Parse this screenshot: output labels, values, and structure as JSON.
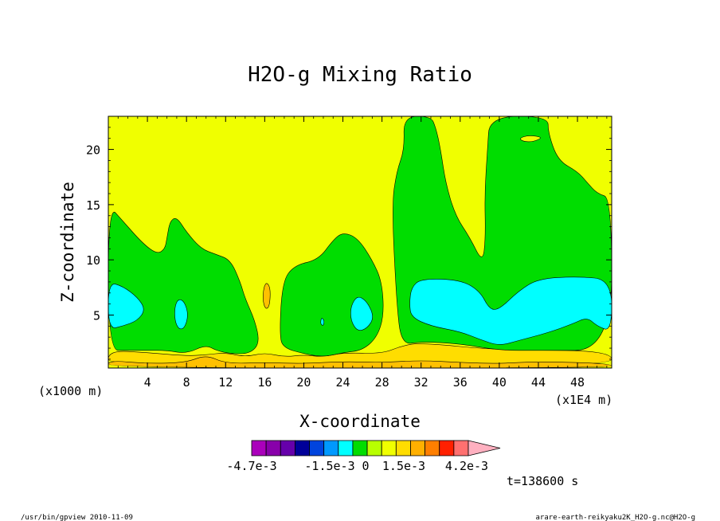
{
  "chart_data": {
    "type": "heatmap",
    "subtype": "filled-contour",
    "title": "H2O-g Mixing Ratio",
    "xlabel": "X-coordinate",
    "ylabel": "Z-coordinate",
    "x_unit_label": "(x1E4 m)",
    "y_unit_label": "(x1000 m)",
    "xlim": [
      0,
      51.5
    ],
    "ylim": [
      0.2,
      23
    ],
    "x_ticks": [
      "4",
      "8",
      "12",
      "16",
      "20",
      "24",
      "28",
      "32",
      "36",
      "40",
      "44",
      "48"
    ],
    "y_ticks": [
      "5",
      "10",
      "15",
      "20"
    ],
    "x_tick_values": [
      4,
      8,
      12,
      16,
      20,
      24,
      28,
      32,
      36,
      40,
      44,
      48
    ],
    "y_tick_values": [
      5,
      10,
      15,
      20
    ],
    "background_level_color": "#f0ff00",
    "regions": [
      {
        "name": "bottom-yellow-band",
        "color": "#ffdd00",
        "points": [
          [
            0,
            0.2
          ],
          [
            51.5,
            0.2
          ],
          [
            51.5,
            1.8
          ],
          [
            40,
            1.8
          ],
          [
            32,
            2.5
          ],
          [
            30,
            2.2
          ],
          [
            28,
            1.5
          ],
          [
            24,
            1.6
          ],
          [
            22,
            1.2
          ],
          [
            20,
            1.4
          ],
          [
            18,
            1.2
          ],
          [
            16,
            1.6
          ],
          [
            14,
            1.2
          ],
          [
            12,
            1.6
          ],
          [
            10,
            1.4
          ],
          [
            8,
            1.3
          ],
          [
            4,
            1.6
          ],
          [
            0,
            1.8
          ]
        ]
      },
      {
        "name": "bottom-orange-band",
        "color": "#ffc000",
        "points": [
          [
            0,
            0.2
          ],
          [
            51.5,
            0.2
          ],
          [
            51.5,
            0.6
          ],
          [
            44,
            0.8
          ],
          [
            40,
            0.6
          ],
          [
            36,
            0.7
          ],
          [
            32,
            0.9
          ],
          [
            28,
            0.7
          ],
          [
            24,
            0.8
          ],
          [
            20,
            0.6
          ],
          [
            16,
            0.7
          ],
          [
            12,
            0.6
          ],
          [
            10,
            1.4
          ],
          [
            8,
            0.7
          ],
          [
            4,
            0.6
          ],
          [
            0,
            0.9
          ]
        ]
      },
      {
        "name": "green-left",
        "color": "#00dd00",
        "points": [
          [
            0,
            15
          ],
          [
            1.5,
            13.5
          ],
          [
            3.5,
            11.5
          ],
          [
            5,
            10.5
          ],
          [
            5.8,
            11
          ],
          [
            6,
            12
          ],
          [
            6.3,
            13.5
          ],
          [
            7,
            13.9
          ],
          [
            8,
            12.5
          ],
          [
            9.5,
            11
          ],
          [
            11,
            10.5
          ],
          [
            12.5,
            10
          ],
          [
            13.5,
            8
          ],
          [
            14,
            6.5
          ],
          [
            15,
            4.5
          ],
          [
            15.5,
            2.5
          ],
          [
            14.5,
            1.5
          ],
          [
            12.5,
            1.5
          ],
          [
            11,
            1.8
          ],
          [
            10,
            2.3
          ],
          [
            8,
            1.5
          ],
          [
            6,
            1.8
          ],
          [
            4,
            1.8
          ],
          [
            2,
            1.8
          ],
          [
            0,
            1.8
          ]
        ]
      },
      {
        "name": "green-middle",
        "color": "#00dd00",
        "points": [
          [
            17.5,
            3
          ],
          [
            17.8,
            8
          ],
          [
            19,
            9.5
          ],
          [
            21.5,
            10
          ],
          [
            23,
            11.8
          ],
          [
            24,
            12.5
          ],
          [
            25.5,
            12
          ],
          [
            27,
            10
          ],
          [
            28,
            8
          ],
          [
            28.2,
            5
          ],
          [
            27.5,
            3
          ],
          [
            26,
            1.8
          ],
          [
            24,
            1.6
          ],
          [
            22,
            1.2
          ],
          [
            20,
            1.5
          ],
          [
            18,
            2
          ]
        ]
      },
      {
        "name": "green-right",
        "color": "#00dd00",
        "points": [
          [
            30,
            2.3
          ],
          [
            29.5,
            6
          ],
          [
            29,
            15
          ],
          [
            29.5,
            18
          ],
          [
            30.3,
            20
          ],
          [
            30.2,
            23
          ],
          [
            33,
            23
          ],
          [
            33.5,
            22
          ],
          [
            34,
            20
          ],
          [
            34.5,
            17
          ],
          [
            35.5,
            14
          ],
          [
            37,
            12
          ],
          [
            38.3,
            9.7
          ],
          [
            38.6,
            12
          ],
          [
            38.5,
            16
          ],
          [
            38.8,
            20
          ],
          [
            39,
            23
          ],
          [
            45,
            23
          ],
          [
            45,
            21.5
          ],
          [
            46,
            19
          ],
          [
            48,
            18
          ],
          [
            49,
            17
          ],
          [
            50,
            16
          ],
          [
            51.5,
            15.6
          ],
          [
            51.5,
            1.8
          ],
          [
            44,
            1.8
          ],
          [
            40,
            1.8
          ],
          [
            36,
            2.4
          ],
          [
            32,
            2.6
          ]
        ]
      },
      {
        "name": "cyan-left",
        "color": "#00ffff",
        "points": [
          [
            0,
            8
          ],
          [
            1.5,
            7.6
          ],
          [
            3,
            6.6
          ],
          [
            3.8,
            5.5
          ],
          [
            3,
            4.5
          ],
          [
            1.5,
            4
          ],
          [
            0,
            3.7
          ]
        ]
      },
      {
        "name": "cyan-blob-x7",
        "color": "#00ffff",
        "points": [
          [
            7.2,
            6.5
          ],
          [
            7.8,
            6.2
          ],
          [
            8.2,
            5
          ],
          [
            7.8,
            3.8
          ],
          [
            7.2,
            3.7
          ],
          [
            6.8,
            4.5
          ],
          [
            6.8,
            5.8
          ]
        ]
      },
      {
        "name": "cyan-blob-x26",
        "color": "#00ffff",
        "points": [
          [
            25.5,
            6.8
          ],
          [
            26.5,
            6.2
          ],
          [
            27.2,
            4.8
          ],
          [
            26.5,
            3.8
          ],
          [
            25.5,
            3.5
          ],
          [
            24.8,
            4.5
          ],
          [
            24.8,
            5.8
          ]
        ]
      },
      {
        "name": "cyan-speck-x22",
        "color": "#00ffff",
        "points": [
          [
            21.8,
            4.8
          ],
          [
            22.1,
            4.5
          ],
          [
            22,
            4
          ],
          [
            21.7,
            4.2
          ]
        ]
      },
      {
        "name": "cyan-right",
        "color": "#00ffff",
        "points": [
          [
            31,
            7.5
          ],
          [
            32,
            8.3
          ],
          [
            36,
            8.2
          ],
          [
            38,
            7.2
          ],
          [
            39,
            5.5
          ],
          [
            40,
            5.5
          ],
          [
            42,
            7.2
          ],
          [
            44,
            8.3
          ],
          [
            48,
            8.5
          ],
          [
            51.5,
            8.2
          ],
          [
            51.5,
            3.5
          ],
          [
            50,
            4
          ],
          [
            49,
            4.8
          ],
          [
            47.5,
            4.2
          ],
          [
            45,
            3.4
          ],
          [
            42,
            2.7
          ],
          [
            40,
            2.2
          ],
          [
            38,
            2.8
          ],
          [
            36,
            3.5
          ],
          [
            33,
            4
          ],
          [
            31,
            4.8
          ],
          [
            30.8,
            6
          ]
        ]
      },
      {
        "name": "orange-blob-x16",
        "color": "#ffc000",
        "points": [
          [
            16.2,
            8
          ],
          [
            16.6,
            7.4
          ],
          [
            16.5,
            5.8
          ],
          [
            16.1,
            5.5
          ],
          [
            15.8,
            6.3
          ],
          [
            15.9,
            7.5
          ]
        ]
      },
      {
        "name": "yellow-top-patch-x43",
        "color": "#f0ff00",
        "points": [
          [
            42,
            21
          ],
          [
            43,
            21.3
          ],
          [
            44.5,
            21.1
          ],
          [
            43.5,
            20.7
          ],
          [
            42.5,
            20.7
          ]
        ]
      }
    ],
    "colorbar": {
      "colors": [
        "#aa00bb",
        "#8800aa",
        "#6600aa",
        "#000099",
        "#0044dd",
        "#0099ff",
        "#00ffff",
        "#00dd00",
        "#b8ff00",
        "#f0ff00",
        "#ffdd00",
        "#ffb000",
        "#ff7f00",
        "#ff2000",
        "#ff7070",
        "#ffb0c0"
      ],
      "labels": [
        "-4.7e-3",
        "-1.5e-3",
        "0",
        "1.5e-3",
        "4.2e-3"
      ]
    },
    "time_label": "t=138600 s"
  },
  "footer": {
    "left": "/usr/bin/gpview  2010-11-09",
    "right": "arare-earth-reikyaku2K_H2O-g.nc@H2O-g"
  }
}
